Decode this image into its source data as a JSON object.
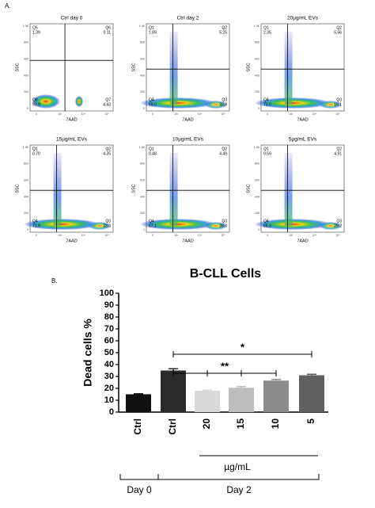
{
  "panel_a": {
    "label": "A.",
    "x_label": "7AAD",
    "y_label": "SSC",
    "y_ticks": [
      "1.0K",
      "800",
      "600",
      "400",
      "200",
      "0"
    ],
    "x_ticks": [
      "0",
      "10³",
      "10⁴",
      "10⁵"
    ],
    "plots": [
      {
        "title": "Ctrl day 0",
        "quadrants": [
          {
            "name": "Q5",
            "value": "1.39"
          },
          {
            "name": "Q6",
            "value": "0.11"
          },
          {
            "name": "Q8",
            "value": "93.9"
          },
          {
            "name": "Q7",
            "value": "4.43"
          }
        ]
      },
      {
        "title": "Ctrl day 2",
        "quadrants": [
          {
            "name": "Q1",
            "value": "1.89"
          },
          {
            "name": "Q2",
            "value": "5.25"
          },
          {
            "name": "Q4",
            "value": "59.0"
          },
          {
            "name": "Q3",
            "value": "33.8"
          }
        ]
      },
      {
        "title": "20µg/mL EVs",
        "quadrants": [
          {
            "name": "Q1",
            "value": "2.35"
          },
          {
            "name": "Q2",
            "value": "5.56"
          },
          {
            "name": "Q4",
            "value": "73.0"
          },
          {
            "name": "Q3",
            "value": "19.1"
          }
        ]
      },
      {
        "title": "15µg/mL EVs",
        "quadrants": [
          {
            "name": "Q1",
            "value": "0.70"
          },
          {
            "name": "Q2",
            "value": "4.35"
          },
          {
            "name": "Q4",
            "value": "71.9"
          },
          {
            "name": "Q3",
            "value": "23.0"
          }
        ]
      },
      {
        "title": "10µg/mL EVs",
        "quadrants": [
          {
            "name": "Q1",
            "value": "0.48"
          },
          {
            "name": "Q2",
            "value": "4.49"
          },
          {
            "name": "Q4",
            "value": "67.1"
          },
          {
            "name": "Q3",
            "value": "28.0"
          }
        ]
      },
      {
        "title": "5µg/mL EVs",
        "quadrants": [
          {
            "name": "Q1",
            "value": "0.59"
          },
          {
            "name": "Q2",
            "value": "4.91"
          },
          {
            "name": "Q4",
            "value": "65.3"
          },
          {
            "name": "Q3",
            "value": "29.2"
          }
        ]
      }
    ]
  },
  "chart_data": {
    "type": "bar",
    "label": "B.",
    "title": "B-CLL Cells",
    "y_label": "Dead cells %",
    "categories": [
      "Ctrl",
      "Ctrl",
      "20",
      "15",
      "10",
      "5"
    ],
    "values": [
      15,
      35,
      18,
      20.5,
      26.5,
      31
    ],
    "errors": [
      0.4,
      1.5,
      0.6,
      1,
      1,
      0.8
    ],
    "colors": [
      "#111111",
      "#2a2a2a",
      "#d9d9d9",
      "#bdbdbd",
      "#8c8c8c",
      "#606060"
    ],
    "ylim": [
      0,
      100
    ],
    "yticks": [
      0,
      10,
      20,
      30,
      40,
      50,
      60,
      70,
      80,
      90,
      100
    ],
    "annotations": [
      "*",
      "**"
    ],
    "group_labels": [
      "µg/mL",
      "Day 0",
      "Day 2"
    ]
  }
}
